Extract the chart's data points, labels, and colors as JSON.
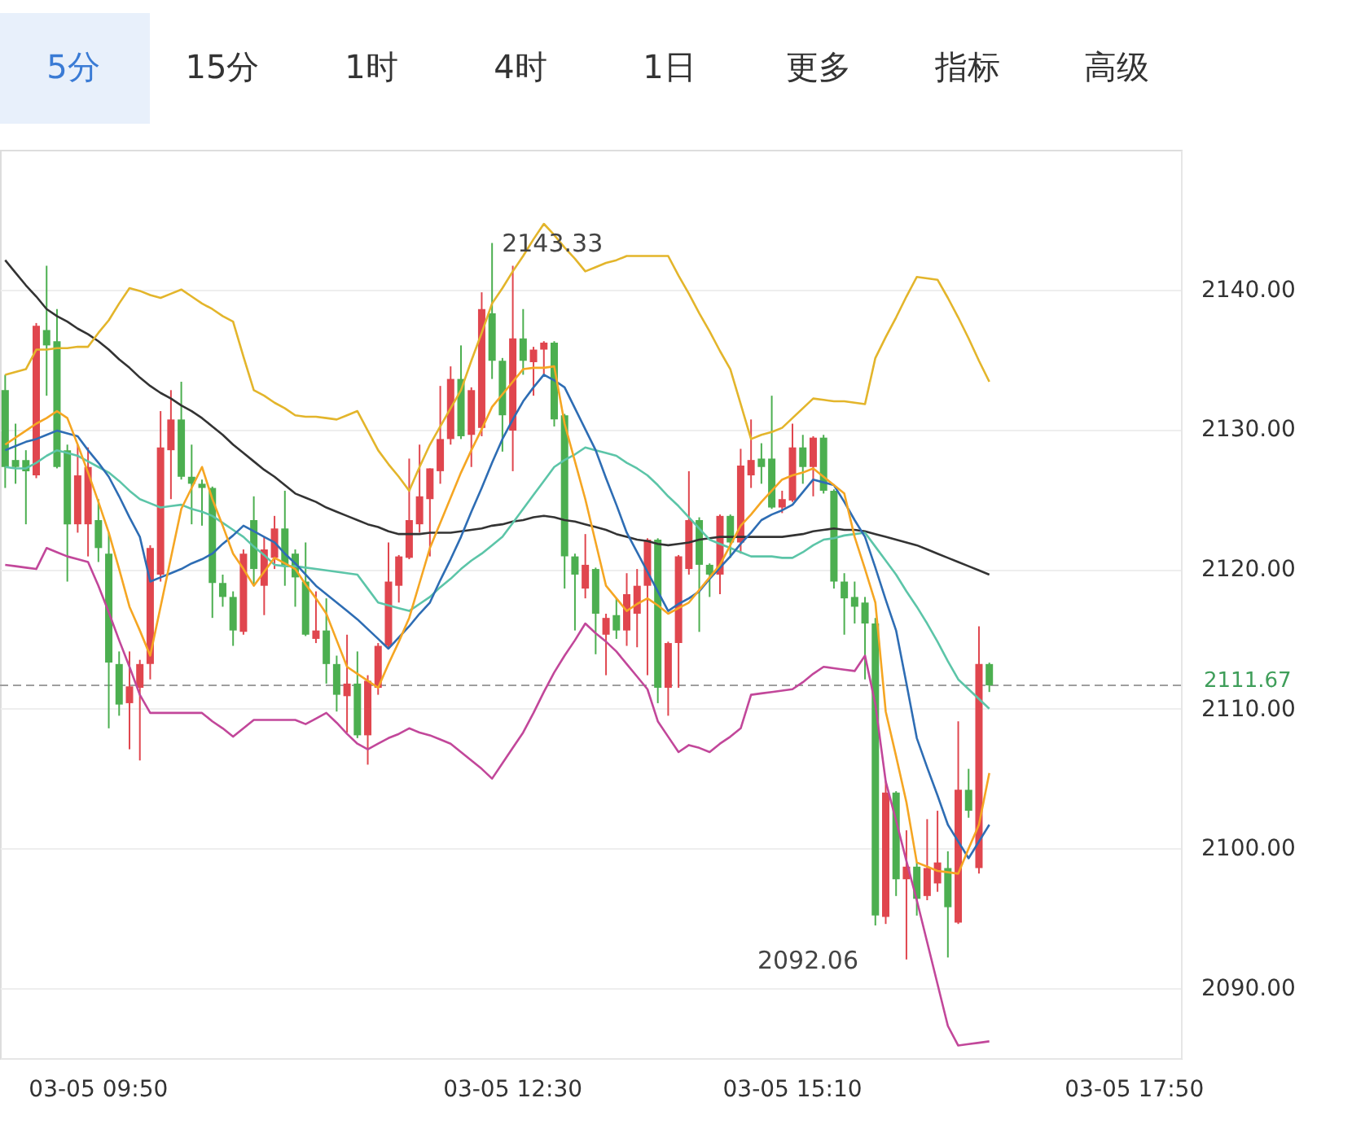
{
  "chart_data": {
    "type": "candlestick",
    "categories": [
      null,
      null,
      null,
      null,
      null,
      null,
      null,
      null,
      null,
      "03-05 09:50",
      null,
      null,
      null,
      null,
      null,
      null,
      null,
      null,
      null,
      null,
      null,
      null,
      null,
      null,
      null,
      null,
      null,
      null,
      null,
      null,
      null,
      null,
      null,
      null,
      null,
      null,
      null,
      null,
      null,
      null,
      null,
      null,
      null,
      null,
      null,
      null,
      null,
      null,
      null,
      "03-05 12:30",
      null,
      null,
      null,
      null,
      null,
      null,
      null,
      null,
      null,
      null,
      null,
      null,
      null,
      null,
      null,
      null,
      null,
      null,
      null,
      null,
      null,
      null,
      null,
      null,
      null,
      null,
      "03-05 15:10",
      null,
      null,
      null,
      null,
      null,
      null,
      null,
      null,
      null,
      null,
      null,
      null,
      null,
      null,
      null,
      null,
      null,
      null,
      null,
      null,
      null,
      null,
      null,
      null,
      null,
      null,
      null,
      null,
      null,
      null,
      null,
      null,
      "03-05 17:50",
      null,
      null,
      null,
      null
    ],
    "ohlc": [
      [
        2132.8,
        2133.9,
        2125.8,
        2127.3
      ],
      [
        2127.8,
        2130.4,
        2126.1,
        2127.3
      ],
      [
        2127.8,
        2128.5,
        2123.2,
        2127.0
      ],
      [
        2126.7,
        2137.6,
        2126.5,
        2137.4
      ],
      [
        2137.1,
        2141.7,
        2132.4,
        2136.0
      ],
      [
        2136.3,
        2138.6,
        2127.2,
        2127.3
      ],
      [
        2128.5,
        2128.9,
        2119.1,
        2123.2
      ],
      [
        2123.2,
        2128.9,
        2122.6,
        2126.7
      ],
      [
        2123.2,
        2128.7,
        2120.9,
        2127.3
      ],
      [
        2123.5,
        2125.0,
        2120.5,
        2121.5
      ],
      [
        2121.1,
        2122.6,
        2108.6,
        2113.3
      ],
      [
        2113.2,
        2114.1,
        2109.5,
        2110.3
      ],
      [
        2110.4,
        2114.1,
        2107.1,
        2111.6
      ],
      [
        2111.5,
        2113.5,
        2106.3,
        2113.2
      ],
      [
        2113.2,
        2121.7,
        2112.1,
        2121.5
      ],
      [
        2119.6,
        2131.3,
        2119.1,
        2128.7
      ],
      [
        2128.5,
        2132.8,
        2125.0,
        2130.7
      ],
      [
        2130.7,
        2133.4,
        2126.4,
        2126.6
      ],
      [
        2126.6,
        2128.9,
        2123.2,
        2126.1
      ],
      [
        2126.1,
        2126.4,
        2123.1,
        2125.8
      ],
      [
        2125.8,
        2125.9,
        2116.5,
        2119.0
      ],
      [
        2119.0,
        2119.6,
        2117.3,
        2118.0
      ],
      [
        2118.0,
        2118.4,
        2114.5,
        2115.6
      ],
      [
        2115.5,
        2121.4,
        2115.3,
        2121.1
      ],
      [
        2123.5,
        2125.2,
        2118.8,
        2120.0
      ],
      [
        2118.8,
        2122.3,
        2116.7,
        2121.4
      ],
      [
        2120.8,
        2123.8,
        2120.0,
        2122.9
      ],
      [
        2122.9,
        2125.6,
        2118.8,
        2120.3
      ],
      [
        2121.1,
        2121.4,
        2117.3,
        2119.4
      ],
      [
        2119.1,
        2121.9,
        2115.2,
        2115.3
      ],
      [
        2115.0,
        2118.4,
        2114.7,
        2115.6
      ],
      [
        2115.6,
        2117.9,
        2111.8,
        2113.2
      ],
      [
        2113.2,
        2113.8,
        2109.8,
        2111.0
      ],
      [
        2110.9,
        2115.3,
        2108.3,
        2111.8
      ],
      [
        2111.8,
        2114.1,
        2107.9,
        2108.1
      ],
      [
        2108.1,
        2112.4,
        2106.0,
        2112.0
      ],
      [
        2111.5,
        2114.7,
        2111.0,
        2114.5
      ],
      [
        2114.5,
        2121.9,
        2114.4,
        2119.1
      ],
      [
        2118.8,
        2121.0,
        2117.6,
        2120.9
      ],
      [
        2120.8,
        2127.9,
        2120.7,
        2123.5
      ],
      [
        2123.2,
        2128.9,
        2122.6,
        2125.2
      ],
      [
        2125.0,
        2127.2,
        2120.9,
        2127.2
      ],
      [
        2127.0,
        2133.1,
        2126.1,
        2129.3
      ],
      [
        2129.3,
        2134.5,
        2128.9,
        2133.6
      ],
      [
        2133.6,
        2136.0,
        2129.3,
        2129.5
      ],
      [
        2129.6,
        2133.0,
        2127.3,
        2132.8
      ],
      [
        2130.1,
        2139.8,
        2129.5,
        2138.6
      ],
      [
        2138.3,
        2143.33,
        2133.6,
        2134.9
      ],
      [
        2134.9,
        2135.1,
        2128.4,
        2131.0
      ],
      [
        2129.9,
        2141.7,
        2127.0,
        2136.5
      ],
      [
        2136.5,
        2138.6,
        2133.9,
        2134.9
      ],
      [
        2134.8,
        2135.9,
        2132.4,
        2135.7
      ],
      [
        2135.7,
        2136.3,
        2133.9,
        2136.2
      ],
      [
        2136.2,
        2136.3,
        2130.2,
        2130.7
      ],
      [
        2131.0,
        2131.1,
        2118.6,
        2120.9
      ],
      [
        2120.9,
        2121.1,
        2115.6,
        2119.6
      ],
      [
        2118.6,
        2122.5,
        2117.9,
        2120.3
      ],
      [
        2120.0,
        2120.1,
        2113.9,
        2116.8
      ],
      [
        2115.3,
        2116.8,
        2112.4,
        2116.5
      ],
      [
        2116.7,
        2117.9,
        2115.0,
        2115.6
      ],
      [
        2115.6,
        2119.7,
        2114.5,
        2118.2
      ],
      [
        2116.8,
        2120.0,
        2114.4,
        2118.8
      ],
      [
        2118.8,
        2122.2,
        2112.4,
        2122.1
      ],
      [
        2122.1,
        2122.2,
        2110.4,
        2111.5
      ],
      [
        2111.5,
        2114.8,
        2109.5,
        2114.7
      ],
      [
        2114.7,
        2121.0,
        2111.5,
        2120.9
      ],
      [
        2120.0,
        2127.0,
        2119.6,
        2123.5
      ],
      [
        2123.5,
        2123.7,
        2115.5,
        2120.3
      ],
      [
        2120.3,
        2120.4,
        2118.0,
        2119.6
      ],
      [
        2119.6,
        2123.9,
        2118.2,
        2123.8
      ],
      [
        2123.8,
        2123.9,
        2120.8,
        2121.9
      ],
      [
        2121.9,
        2128.6,
        2121.1,
        2127.4
      ],
      [
        2126.7,
        2130.7,
        2125.8,
        2127.8
      ],
      [
        2127.9,
        2129.0,
        2126.1,
        2127.3
      ],
      [
        2127.9,
        2132.4,
        2124.3,
        2124.4
      ],
      [
        2124.4,
        2125.6,
        2124.0,
        2125.0
      ],
      [
        2124.9,
        2130.4,
        2124.8,
        2128.7
      ],
      [
        2128.7,
        2129.6,
        2126.1,
        2127.3
      ],
      [
        2127.3,
        2129.5,
        2125.2,
        2129.4
      ],
      [
        2129.4,
        2129.6,
        2125.4,
        2125.6
      ],
      [
        2125.6,
        2125.7,
        2118.6,
        2119.1
      ],
      [
        2119.1,
        2119.7,
        2115.3,
        2117.9
      ],
      [
        2118.0,
        2119.1,
        2116.1,
        2117.3
      ],
      [
        2117.6,
        2118.0,
        2112.1,
        2116.1
      ],
      [
        2116.1,
        2116.5,
        2094.5,
        2095.2
      ],
      [
        2095.1,
        2104.8,
        2094.6,
        2104.0
      ],
      [
        2104.0,
        2104.1,
        2096.6,
        2097.8
      ],
      [
        2097.8,
        2101.3,
        2092.06,
        2098.7
      ],
      [
        2098.7,
        2099.0,
        2095.2,
        2096.4
      ],
      [
        2096.6,
        2102.1,
        2096.3,
        2098.6
      ],
      [
        2097.5,
        2102.7,
        2096.9,
        2099.0
      ],
      [
        2098.6,
        2099.8,
        2092.2,
        2095.8
      ],
      [
        2094.7,
        2109.1,
        2094.6,
        2104.2
      ],
      [
        2104.2,
        2105.7,
        2102.2,
        2102.7
      ],
      [
        2098.6,
        2115.9,
        2098.2,
        2113.2
      ],
      [
        2113.2,
        2113.3,
        2111.2,
        2111.67
      ],
      null,
      null,
      null,
      null,
      null,
      null,
      null,
      null,
      null,
      null,
      null,
      null,
      null,
      null,
      null,
      null,
      null,
      null
    ],
    "colors": [
      "#4caf50",
      "#4caf50",
      "#4caf50",
      "#e0464e",
      "#4caf50",
      "#4caf50",
      "#4caf50",
      "#e0464e",
      "#e0464e",
      "#4caf50",
      "#4caf50",
      "#4caf50",
      "#e0464e",
      "#e0464e",
      "#e0464e",
      "#e0464e",
      "#e0464e",
      "#4caf50",
      "#4caf50",
      "#4caf50",
      "#4caf50",
      "#4caf50",
      "#4caf50",
      "#e0464e",
      "#4caf50",
      "#e0464e",
      "#e0464e",
      "#4caf50",
      "#4caf50",
      "#4caf50",
      "#e0464e",
      "#4caf50",
      "#4caf50",
      "#e0464e",
      "#4caf50",
      "#e0464e",
      "#e0464e",
      "#e0464e",
      "#e0464e",
      "#e0464e",
      "#e0464e",
      "#e0464e",
      "#e0464e",
      "#e0464e",
      "#4caf50",
      "#e0464e",
      "#e0464e",
      "#4caf50",
      "#4caf50",
      "#e0464e",
      "#4caf50",
      "#e0464e",
      "#e0464e",
      "#4caf50",
      "#4caf50",
      "#4caf50",
      "#e0464e",
      "#4caf50",
      "#e0464e",
      "#4caf50",
      "#e0464e",
      "#e0464e",
      "#e0464e",
      "#4caf50",
      "#e0464e",
      "#e0464e",
      "#e0464e",
      "#4caf50",
      "#4caf50",
      "#e0464e",
      "#4caf50",
      "#e0464e",
      "#e0464e",
      "#4caf50",
      "#4caf50",
      "#e0464e",
      "#e0464e",
      "#4caf50",
      "#e0464e",
      "#4caf50",
      "#4caf50",
      "#4caf50",
      "#4caf50",
      "#4caf50",
      "#4caf50",
      "#e0464e",
      "#4caf50",
      "#e0464e",
      "#4caf50",
      "#e0464e",
      "#e0464e",
      "#4caf50",
      "#e0464e",
      "#4caf50",
      "#e0464e",
      "#4caf50",
      null,
      null,
      null,
      null,
      null,
      null,
      null,
      null,
      null,
      null,
      null,
      null,
      null,
      null,
      null,
      null,
      null,
      null
    ],
    "ylim": [
      2085,
      2150
    ],
    "yticks": [
      {
        "value": 2090,
        "label": "2090.00"
      },
      {
        "value": 2100,
        "label": "2100.00"
      },
      {
        "value": 2110,
        "label": "2110.00"
      },
      {
        "value": 2120,
        "label": "2120.00"
      },
      {
        "value": 2130,
        "label": "2130.00"
      },
      {
        "value": 2140,
        "label": "2140.00"
      }
    ],
    "grid": "y",
    "ref_lines": [
      {
        "axis": "y",
        "value": 2111.67,
        "label": "2111.67",
        "color": "#9e9e9e",
        "line_style": "dashed"
      }
    ],
    "annotations": [
      "5分",
      "15分",
      "1时",
      "4时",
      "1日",
      "更多",
      "指标",
      "高级",
      {
        "text": "2143.33",
        "y": 2143.33
      },
      "2092.06"
    ],
    "series": [
      {
        "type": "line",
        "color": "#333333",
        "values": [
          2142.1,
          2141.2,
          2140.3,
          2139.5,
          2138.6,
          2138.1,
          2137.7,
          2137.2,
          2136.8,
          2136.3,
          2135.7,
          2135.0,
          2134.4,
          2133.7,
          2133.1,
          2132.6,
          2132.2,
          2131.7,
          2131.3,
          2130.8,
          2130.2,
          2129.6,
          2128.9,
          2128.3,
          2127.7,
          2127.1,
          2126.6,
          2126.0,
          2125.4,
          2125.1,
          2124.8,
          2124.4,
          2124.1,
          2123.8,
          2123.5,
          2123.2,
          2123.0,
          2122.7,
          2122.5,
          2122.5,
          2122.5,
          2122.6,
          2122.6,
          2122.6,
          2122.7,
          2122.8,
          2122.9,
          2123.1,
          2123.2,
          2123.4,
          2123.5,
          2123.7,
          2123.8,
          2123.7,
          2123.5,
          2123.4,
          2123.2,
          2123.0,
          2122.8,
          2122.5,
          2122.3,
          2122.1,
          2122.0,
          2121.8,
          2121.7,
          2121.8,
          2121.9,
          2122.1,
          2122.2,
          2122.3,
          2122.3,
          2122.3,
          2122.3,
          2122.3,
          2122.3,
          2122.3,
          2122.4,
          2122.5,
          2122.7,
          2122.8,
          2122.9,
          2122.8,
          2122.8,
          2122.7,
          2122.5,
          2122.3,
          2122.1,
          2121.9,
          2121.7,
          2121.4,
          2121.1,
          2120.8,
          2120.5,
          2120.2,
          2119.9,
          2119.6,
          null,
          null,
          null,
          null,
          null,
          null,
          null,
          null,
          null,
          null,
          null,
          null,
          null,
          null,
          null,
          null,
          null,
          null
        ]
      },
      {
        "type": "line",
        "color": "#e3b52b",
        "values": [
          2133.9,
          2134.1,
          2134.3,
          2135.7,
          2135.7,
          2135.8,
          2135.8,
          2135.9,
          2135.9,
          2136.9,
          2137.8,
          2139.0,
          2140.1,
          2139.9,
          2139.6,
          2139.4,
          2139.7,
          2140.0,
          2139.5,
          2139.0,
          2138.6,
          2138.1,
          2137.7,
          2135.2,
          2132.8,
          2132.4,
          2131.9,
          2131.5,
          2131.0,
          2130.9,
          2130.9,
          2130.8,
          2130.7,
          2131.0,
          2131.3,
          2129.9,
          2128.5,
          2127.5,
          2126.6,
          2125.6,
          2127.3,
          2128.9,
          2130.2,
          2131.5,
          2132.8,
          2134.9,
          2136.9,
          2139.0,
          2140.1,
          2141.3,
          2142.4,
          2143.6,
          2144.7,
          2143.9,
          2143.0,
          2142.2,
          2141.3,
          2141.6,
          2141.9,
          2142.1,
          2142.4,
          2142.4,
          2142.4,
          2142.4,
          2142.4,
          2141.0,
          2139.7,
          2138.3,
          2137.0,
          2135.6,
          2134.3,
          2131.8,
          2129.3,
          2129.6,
          2129.8,
          2130.1,
          2130.8,
          2131.5,
          2132.2,
          2132.1,
          2132.0,
          2132.0,
          2131.9,
          2131.8,
          2135.1,
          2136.6,
          2138.0,
          2139.5,
          2140.9,
          2140.8,
          2140.7,
          2139.4,
          2138.0,
          2136.5,
          2134.9,
          2133.4,
          null,
          null,
          null,
          null,
          null,
          null,
          null,
          null,
          null,
          null,
          null,
          null,
          null,
          null,
          null,
          null,
          null,
          null
        ]
      },
      {
        "type": "line",
        "color": "#c2479a",
        "values": [
          2120.3,
          2120.2,
          2120.1,
          2120.0,
          2121.5,
          2121.2,
          2120.9,
          2120.7,
          2120.5,
          2118.8,
          2116.9,
          2114.9,
          2113.0,
          2111.0,
          2109.7,
          2109.7,
          2109.7,
          2109.7,
          2109.7,
          2109.7,
          2109.1,
          2108.6,
          2108.0,
          2108.6,
          2109.2,
          2109.2,
          2109.2,
          2109.2,
          2109.2,
          2108.9,
          2109.3,
          2109.7,
          2109.0,
          2108.2,
          2107.5,
          2107.1,
          2107.5,
          2107.9,
          2108.2,
          2108.6,
          2108.3,
          2108.1,
          2107.8,
          2107.5,
          2106.9,
          2106.3,
          2105.7,
          2105.0,
          2106.1,
          2107.2,
          2108.3,
          2109.7,
          2111.2,
          2112.6,
          2113.8,
          2114.9,
          2116.1,
          2115.4,
          2114.8,
          2114.1,
          2113.2,
          2112.3,
          2111.4,
          2109.1,
          2108.0,
          2106.9,
          2107.4,
          2107.2,
          2106.9,
          2107.5,
          2108.0,
          2108.6,
          2111.0,
          2111.1,
          2111.2,
          2111.3,
          2111.4,
          2111.9,
          2112.5,
          2113.0,
          2112.9,
          2112.8,
          2112.7,
          2113.8,
          2110.3,
          2104.8,
          2102.0,
          2099.1,
          2096.3,
          2093.3,
          2090.3,
          2087.3,
          2085.9,
          2086.0,
          2086.1,
          2086.2,
          null,
          null,
          null,
          null,
          null,
          null,
          null,
          null,
          null,
          null,
          null,
          null,
          null,
          null,
          null,
          null,
          null,
          null
        ]
      },
      {
        "type": "line",
        "color": "#5cc5a8",
        "values": [
          2127.3,
          2127.2,
          2127.2,
          2127.6,
          2128.1,
          2128.5,
          2128.3,
          2128.1,
          2127.7,
          2127.3,
          2126.9,
          2126.3,
          2125.6,
          2125.0,
          2124.7,
          2124.4,
          2124.5,
          2124.6,
          2124.3,
          2124.1,
          2123.8,
          2123.3,
          2122.8,
          2122.3,
          2121.6,
          2121.0,
          2120.3,
          2120.2,
          2120.2,
          2120.1,
          2120.0,
          2119.9,
          2119.8,
          2119.7,
          2119.6,
          2118.6,
          2117.6,
          2117.4,
          2117.2,
          2117.0,
          2117.5,
          2118.0,
          2118.7,
          2119.3,
          2120.0,
          2120.6,
          2121.1,
          2121.7,
          2122.3,
          2123.3,
          2124.3,
          2125.3,
          2126.3,
          2127.3,
          2127.8,
          2128.2,
          2128.7,
          2128.5,
          2128.3,
          2128.1,
          2127.6,
          2127.2,
          2126.7,
          2126.0,
          2125.2,
          2124.5,
          2123.7,
          2122.9,
          2122.1,
          2121.8,
          2121.5,
          2121.2,
          2120.9,
          2120.9,
          2120.9,
          2120.8,
          2120.8,
          2121.2,
          2121.7,
          2122.1,
          2122.2,
          2122.4,
          2122.5,
          2122.6,
          2121.6,
          2120.6,
          2119.6,
          2118.4,
          2117.3,
          2116.1,
          2114.8,
          2113.4,
          2112.1,
          2111.4,
          2110.7,
          2110.0,
          null,
          null,
          null,
          null,
          null,
          null,
          null,
          null,
          null,
          null,
          null,
          null,
          null,
          null,
          null,
          null,
          null,
          null
        ]
      },
      {
        "type": "line",
        "color": "#2e6db4",
        "values": [
          2128.5,
          2128.8,
          2129.1,
          2129.3,
          2129.6,
          2129.9,
          2129.7,
          2129.5,
          2128.5,
          2127.6,
          2126.6,
          2125.2,
          2123.7,
          2122.3,
          2119.1,
          2119.4,
          2119.7,
          2120.0,
          2120.4,
          2120.7,
          2121.1,
          2121.8,
          2122.4,
          2123.1,
          2122.7,
          2122.3,
          2121.9,
          2121.1,
          2120.4,
          2119.6,
          2118.8,
          2118.2,
          2117.6,
          2117.0,
          2116.4,
          2115.7,
          2115.0,
          2114.3,
          2115.1,
          2115.9,
          2116.8,
          2117.6,
          2119.2,
          2120.7,
          2122.3,
          2124.1,
          2125.8,
          2127.6,
          2129.3,
          2130.7,
          2132.0,
          2133.0,
          2133.9,
          2133.5,
          2133.0,
          2131.5,
          2130.0,
          2128.5,
          2126.5,
          2124.6,
          2122.6,
          2121.2,
          2119.8,
          2118.4,
          2117.0,
          2117.5,
          2117.9,
          2118.4,
          2119.3,
          2120.1,
          2120.9,
          2121.8,
          2122.6,
          2123.5,
          2123.9,
          2124.2,
          2124.6,
          2125.5,
          2126.4,
          2126.2,
          2126.0,
          2124.8,
          2123.5,
          2122.3,
          2120.1,
          2117.8,
          2115.6,
          2111.8,
          2107.9,
          2105.8,
          2103.8,
          2101.7,
          2100.5,
          2099.3,
          2100.5,
          2101.7,
          null,
          null,
          null,
          null,
          null,
          null,
          null,
          null,
          null,
          null,
          null,
          null,
          null,
          null,
          null,
          null,
          null,
          null
        ]
      },
      {
        "type": "line",
        "color": "#f5a623",
        "values": [
          2128.9,
          2129.4,
          2129.9,
          2130.4,
          2130.8,
          2131.3,
          2130.8,
          2128.9,
          2126.9,
          2124.8,
          2122.6,
          2120.0,
          2117.3,
          2115.6,
          2113.8,
          2117.3,
          2120.8,
          2124.3,
          2125.8,
          2127.3,
          2125.0,
          2123.1,
          2121.1,
          2120.0,
          2118.8,
          2119.8,
          2120.8,
          2120.4,
          2120.0,
          2118.9,
          2117.9,
          2116.8,
          2114.9,
          2113.0,
          2112.5,
          2112.0,
          2111.5,
          2113.2,
          2114.8,
          2116.5,
          2119.0,
          2121.5,
          2123.3,
          2125.1,
          2126.9,
          2128.5,
          2130.0,
          2131.6,
          2132.5,
          2133.4,
          2134.3,
          2134.4,
          2134.4,
          2134.5,
          2130.4,
          2127.7,
          2125.0,
          2121.9,
          2118.8,
          2117.9,
          2117.0,
          2117.5,
          2117.9,
          2117.4,
          2116.8,
          2117.2,
          2117.6,
          2118.5,
          2119.4,
          2120.3,
          2121.7,
          2123.1,
          2123.9,
          2124.8,
          2125.6,
          2126.4,
          2126.7,
          2126.9,
          2127.2,
          2126.6,
          2126.0,
          2125.4,
          2122.3,
          2120.0,
          2117.6,
          2109.8,
          2106.6,
          2103.3,
          2099.0,
          2098.7,
          2098.4,
          2098.3,
          2098.2,
          2100.0,
          2101.7,
          2105.4,
          null,
          null,
          null,
          null,
          null,
          null,
          null,
          null,
          null,
          null,
          null,
          null,
          null,
          null,
          null,
          null,
          null,
          null
        ]
      }
    ]
  }
}
